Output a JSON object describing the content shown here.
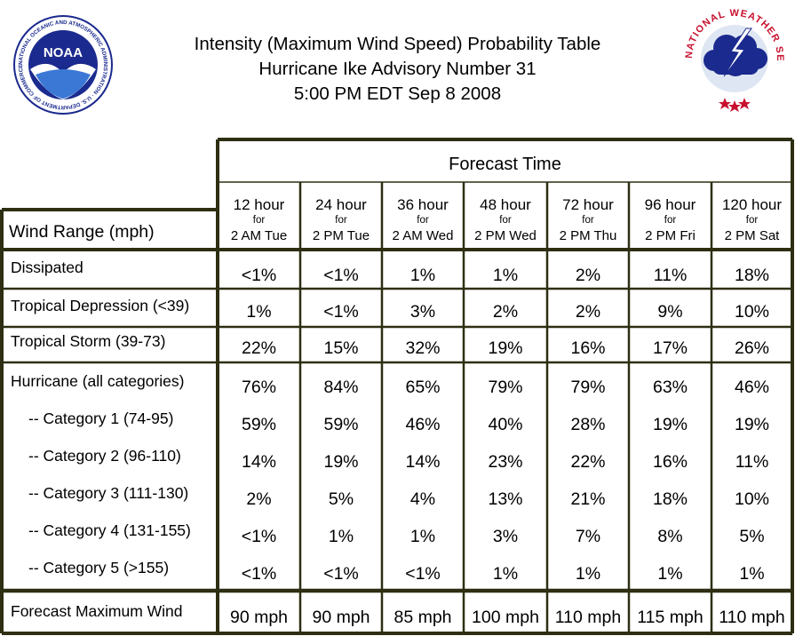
{
  "header": {
    "title_line1": "Intensity (Maximum Wind Speed) Probability Table",
    "title_line2": "Hurricane Ike Advisory Number 31",
    "title_line3": "5:00 PM EDT Sep 8 2008"
  },
  "logos": {
    "noaa_text": "NOAA",
    "noaa_ring_text": "NATIONAL OCEANIC AND ATMOSPHERIC ADMINISTRATION · U.S. DEPARTMENT OF COMMERCE ·",
    "nws_ring_text": "NATIONAL WEATHER SERVICE"
  },
  "colors": {
    "border": "#2e2e12",
    "noaa_blue": "#1b2a8e",
    "nws_red": "#c8102e",
    "nws_cloud": "#1b2a8e"
  },
  "chart_data": {
    "type": "table",
    "forecast_time_label": "Forecast Time",
    "row_header_label": "Wind Range (mph)",
    "columns": [
      {
        "hour": "12 hour",
        "for": "for",
        "time": "2 AM Tue"
      },
      {
        "hour": "24 hour",
        "for": "for",
        "time": "2 PM Tue"
      },
      {
        "hour": "36 hour",
        "for": "for",
        "time": "2 AM Wed"
      },
      {
        "hour": "48 hour",
        "for": "for",
        "time": "2 PM Wed"
      },
      {
        "hour": "72 hour",
        "for": "for",
        "time": "2 PM Thu"
      },
      {
        "hour": "96 hour",
        "for": "for",
        "time": "2 PM Fri"
      },
      {
        "hour": "120 hour",
        "for": "for",
        "time": "2 PM Sat"
      }
    ],
    "rows": [
      {
        "label": "Dissipated",
        "values": [
          "<1%",
          "<1%",
          "1%",
          "1%",
          "2%",
          "11%",
          "18%"
        ]
      },
      {
        "label": "Tropical Depression (<39)",
        "values": [
          "1%",
          "<1%",
          "3%",
          "2%",
          "2%",
          "9%",
          "10%"
        ]
      },
      {
        "label": "Tropical Storm (39-73)",
        "values": [
          "22%",
          "15%",
          "32%",
          "19%",
          "16%",
          "17%",
          "26%"
        ]
      },
      {
        "label": "Hurricane (all categories)",
        "values": [
          "76%",
          "84%",
          "65%",
          "79%",
          "79%",
          "63%",
          "46%"
        ]
      },
      {
        "label": "-- Category 1 (74-95)",
        "values": [
          "59%",
          "59%",
          "46%",
          "40%",
          "28%",
          "19%",
          "19%"
        ]
      },
      {
        "label": "-- Category 2 (96-110)",
        "values": [
          "14%",
          "19%",
          "14%",
          "23%",
          "22%",
          "16%",
          "11%"
        ]
      },
      {
        "label": "-- Category 3 (111-130)",
        "values": [
          "2%",
          "5%",
          "4%",
          "13%",
          "21%",
          "18%",
          "10%"
        ]
      },
      {
        "label": "-- Category 4 (131-155)",
        "values": [
          "<1%",
          "1%",
          "1%",
          "3%",
          "7%",
          "8%",
          "5%"
        ]
      },
      {
        "label": "-- Category 5 (>155)",
        "values": [
          "<1%",
          "<1%",
          "<1%",
          "1%",
          "1%",
          "1%",
          "1%"
        ]
      },
      {
        "label": "Forecast Maximum Wind",
        "values": [
          "90 mph",
          "90 mph",
          "85 mph",
          "100 mph",
          "110 mph",
          "115 mph",
          "110 mph"
        ]
      }
    ]
  }
}
